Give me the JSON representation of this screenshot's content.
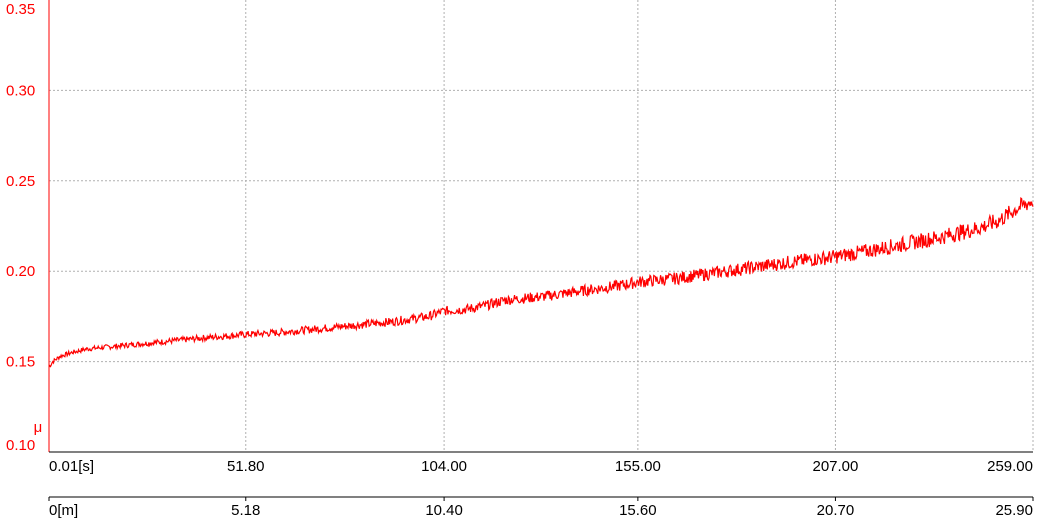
{
  "chart_data": {
    "type": "line",
    "ylabel": "μ",
    "ylim": [
      0.1,
      0.35
    ],
    "yticks": [
      "0.35",
      "0.30",
      "0.25",
      "0.20",
      "0.15",
      "0.10"
    ],
    "yticks_values": [
      0.35,
      0.3,
      0.25,
      0.2,
      0.15,
      0.1
    ],
    "xlim": [
      0.01,
      259.0
    ],
    "xticks_time": [
      "0.01[s]",
      "51.80",
      "104.00",
      "155.00",
      "207.00",
      "259.00"
    ],
    "xticks_time_values": [
      0.01,
      51.8,
      104.0,
      155.0,
      207.0,
      259.0
    ],
    "xticks_distance": [
      "0[m]",
      "5.18",
      "10.40",
      "15.60",
      "20.70",
      "25.90"
    ],
    "grid": true,
    "colors": {
      "series": "#ff0000",
      "y_axis": "#ff0000",
      "grid": "#b0b0b0",
      "x_text": "#000000"
    },
    "series": [
      {
        "x": [
          0.01,
          1,
          3,
          6,
          10,
          15,
          20,
          30,
          40,
          51.8,
          60,
          70,
          80,
          90,
          100,
          104,
          110,
          115,
          120,
          130,
          140,
          150,
          155,
          165,
          175,
          185,
          195,
          207,
          215,
          225,
          235,
          245,
          250,
          255,
          259
        ],
        "values": [
          0.147,
          0.15,
          0.153,
          0.155,
          0.157,
          0.158,
          0.159,
          0.161,
          0.163,
          0.165,
          0.166,
          0.168,
          0.17,
          0.172,
          0.175,
          0.178,
          0.179,
          0.181,
          0.184,
          0.186,
          0.189,
          0.192,
          0.194,
          0.196,
          0.199,
          0.202,
          0.205,
          0.208,
          0.211,
          0.215,
          0.219,
          0.224,
          0.228,
          0.235,
          0.239
        ]
      }
    ]
  }
}
